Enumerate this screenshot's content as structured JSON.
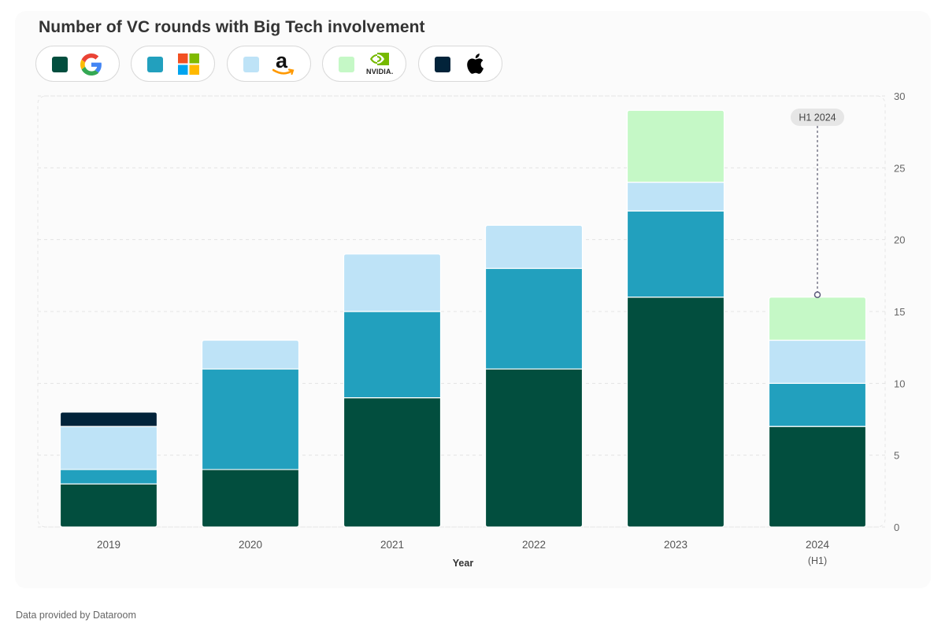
{
  "title": "Number of VC rounds with Big Tech involvement",
  "footer": "Data provided by Dataroom",
  "legend": [
    {
      "company": "Google",
      "color": "#024e3e",
      "icon": "google-logo"
    },
    {
      "company": "Microsoft",
      "color": "#22a0be",
      "icon": "microsoft-logo"
    },
    {
      "company": "Amazon",
      "color": "#bee3f7",
      "icon": "amazon-logo",
      "logo_text": "a"
    },
    {
      "company": "NVIDIA",
      "color": "#c5f8c6",
      "icon": "nvidia-logo",
      "logo_text": "NVIDIA."
    },
    {
      "company": "Apple",
      "color": "#02233a",
      "icon": "apple-logo"
    }
  ],
  "chart_data": {
    "type": "bar",
    "stacked": true,
    "categories": [
      "2019",
      "2020",
      "2021",
      "2022",
      "2023",
      "2024"
    ],
    "category_sublabels": [
      "",
      "",
      "",
      "",
      "",
      "(H1)"
    ],
    "xlabel": "Year",
    "ylabel": "",
    "ylim": [
      0,
      30
    ],
    "yticks": [
      0,
      5,
      10,
      15,
      20,
      25,
      30
    ],
    "y_axis_side": "right",
    "grid": true,
    "series": [
      {
        "name": "Google",
        "color": "#024e3e",
        "values": [
          3,
          4,
          9,
          11,
          16,
          7
        ]
      },
      {
        "name": "Microsoft",
        "color": "#22a0be",
        "values": [
          1,
          7,
          6,
          7,
          6,
          3
        ]
      },
      {
        "name": "Amazon",
        "color": "#bee3f7",
        "values": [
          3,
          2,
          4,
          3,
          2,
          3
        ]
      },
      {
        "name": "NVIDIA",
        "color": "#c5f8c6",
        "values": [
          0,
          0,
          0,
          0,
          5,
          3
        ]
      },
      {
        "name": "Apple",
        "color": "#02233a",
        "values": [
          1,
          0,
          0,
          0,
          0,
          0
        ]
      }
    ],
    "annotation": {
      "category": "2024",
      "label": "H1 2024"
    }
  }
}
